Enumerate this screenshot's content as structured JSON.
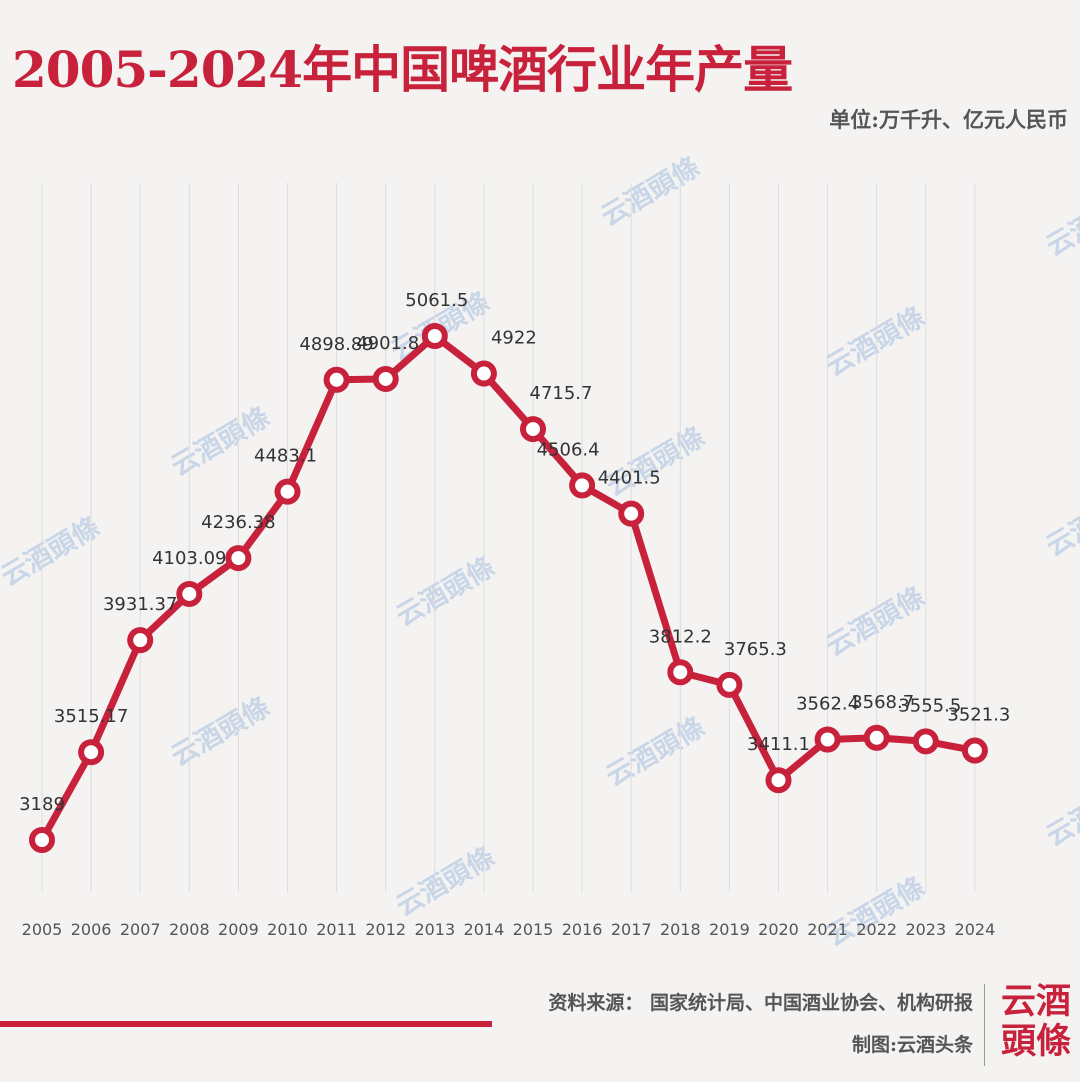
{
  "header": {
    "title": "2005-2024年中国啤酒行业年产量",
    "unit": "单位:万千升、亿元人民币"
  },
  "footer": {
    "source": "资料来源： 国家统计局、中国酒业协会、机构研报",
    "maker": "制图:云酒头条",
    "logo_line1": "云酒",
    "logo_line2": "頭條"
  },
  "watermark": "云酒頭條",
  "colors": {
    "accent": "#c8213b",
    "grid": "#dcdcdc"
  },
  "chart_data": {
    "type": "line",
    "title": "2005-2024年中国啤酒行业年产量",
    "xlabel": "",
    "ylabel": "",
    "grid": "vertical",
    "legend": "none",
    "ylim": [
      3000,
      5200
    ],
    "x": [
      "2005",
      "2006",
      "2007",
      "2008",
      "2009",
      "2010",
      "2011",
      "2012",
      "2013",
      "2014",
      "2015",
      "2016",
      "2017",
      "2018",
      "2019",
      "2020",
      "2021",
      "2022",
      "2023",
      "2024"
    ],
    "series": [
      {
        "values": [
          3189,
          3515.17,
          3931.37,
          4103.09,
          4236.38,
          4483.1,
          4898.89,
          4901.8,
          5061.5,
          4922,
          4715.7,
          4506.4,
          4401.5,
          3812.2,
          3765.3,
          3411.1,
          3562.4,
          3568.7,
          3555.5,
          3521.3
        ],
        "labels": [
          "3189",
          "3515.17",
          "3931.37",
          "4103.09",
          "4236.38",
          "4483.1",
          "4898.89",
          "4901.8",
          "5061.5",
          "4922",
          "4715.7",
          "4506.4",
          "4401.5",
          "3812.2",
          "3765.3",
          "3411.1",
          "3562.4",
          "3568.7",
          "3555.5",
          "3521.3"
        ]
      }
    ]
  }
}
